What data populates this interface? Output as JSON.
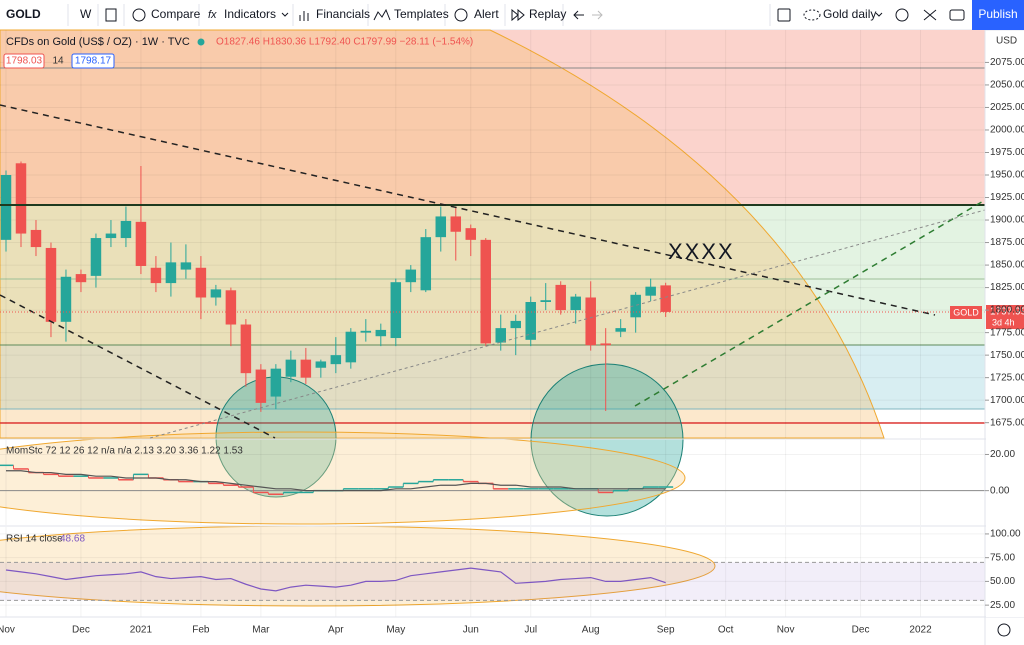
{
  "toolbar": {
    "symbol": "GOLD",
    "interval": "W",
    "buttons": [
      "Compare",
      "Indicators",
      "Financials",
      "Templates",
      "Alert",
      "Replay"
    ],
    "layout": "Gold daily",
    "publish": "Publish"
  },
  "legend": {
    "title": "CFDs on Gold (US$ / OZ) · 1W · TVC",
    "ohlc": "O1827.46 H1830.36 L1792.40 C1797.99 −28.11 (−1.54%)",
    "bid": "1798.03",
    "spread": "14",
    "ask": "1798.17"
  },
  "currency": "USD",
  "price_tag": {
    "symbol": "GOLD",
    "price": "1797.99",
    "countdown": "3d 4h"
  },
  "chart_data": [
    {
      "type": "candlestick",
      "annotation": "XXXX",
      "up_color": "#26a69a",
      "down_color": "#ef5350",
      "grid": true,
      "x": [
        0,
        1,
        2,
        3,
        4,
        5,
        6,
        7,
        8,
        9,
        10,
        11,
        12,
        13,
        14,
        15,
        16,
        17,
        18,
        19,
        20,
        21,
        22,
        23,
        24,
        25,
        26,
        27,
        28,
        29,
        30,
        31,
        32,
        33,
        34,
        35,
        36,
        37,
        38,
        39,
        40,
        41,
        42,
        43,
        44
      ],
      "open": [
        1878,
        1963,
        1889,
        1869,
        1787,
        1840,
        1838,
        1880,
        1880,
        1898,
        1847,
        1830,
        1845,
        1847,
        1814,
        1822,
        1784,
        1734,
        1704,
        1726,
        1745,
        1736,
        1740,
        1742,
        1775,
        1771,
        1769,
        1831,
        1822,
        1881,
        1904,
        1891,
        1878,
        1764,
        1780,
        1767,
        1809,
        1828,
        1800,
        1814,
        1763,
        1776,
        1792,
        1816,
        1827.46
      ],
      "high": [
        1955,
        1965,
        1900,
        1875,
        1845,
        1845,
        1885,
        1900,
        1915,
        1960,
        1860,
        1875,
        1873,
        1860,
        1828,
        1825,
        1790,
        1740,
        1740,
        1755,
        1758,
        1745,
        1770,
        1780,
        1790,
        1785,
        1835,
        1850,
        1890,
        1915,
        1915,
        1895,
        1880,
        1795,
        1795,
        1815,
        1830,
        1832,
        1818,
        1832,
        1780,
        1790,
        1820,
        1835,
        1830.36
      ],
      "low": [
        1865,
        1870,
        1860,
        1770,
        1765,
        1820,
        1825,
        1870,
        1870,
        1840,
        1820,
        1815,
        1835,
        1790,
        1805,
        1760,
        1715,
        1687,
        1690,
        1720,
        1718,
        1725,
        1730,
        1735,
        1765,
        1760,
        1760,
        1820,
        1820,
        1865,
        1855,
        1860,
        1760,
        1755,
        1750,
        1760,
        1800,
        1795,
        1785,
        1755,
        1688,
        1770,
        1775,
        1810,
        1792.4
      ],
      "close": [
        1950,
        1885,
        1870,
        1787,
        1837,
        1831,
        1880,
        1885,
        1899,
        1849,
        1830,
        1853,
        1853,
        1814,
        1823,
        1784,
        1730,
        1697,
        1735,
        1745,
        1725,
        1743,
        1750,
        1776,
        1777,
        1778,
        1831,
        1845,
        1881,
        1904,
        1887,
        1878,
        1763,
        1780,
        1788,
        1809,
        1811,
        1800,
        1815,
        1761,
        1761,
        1780,
        1817,
        1826,
        1797.99
      ],
      "xlim": [
        -0.4,
        65.3
      ],
      "xticks": [
        {
          "value": 0,
          "label": "Nov"
        },
        {
          "value": 5,
          "label": "Dec"
        },
        {
          "value": 9,
          "label": "2021"
        },
        {
          "value": 13,
          "label": "Feb"
        },
        {
          "value": 17,
          "label": "Mar"
        },
        {
          "value": 22,
          "label": "Apr"
        },
        {
          "value": 26,
          "label": "May"
        },
        {
          "value": 31,
          "label": "Jun"
        },
        {
          "value": 35,
          "label": "Jul"
        },
        {
          "value": 39,
          "label": "Aug"
        },
        {
          "value": 44,
          "label": "Sep"
        },
        {
          "value": 48,
          "label": "Oct"
        },
        {
          "value": 52,
          "label": "Nov"
        },
        {
          "value": 57,
          "label": "Dec"
        },
        {
          "value": 61,
          "label": "2022"
        }
      ],
      "ylim": [
        1658,
        2111
      ],
      "yticks": [
        {
          "value": 2075,
          "label": "2075.00"
        },
        {
          "value": 2050,
          "label": "2050.00"
        },
        {
          "value": 2025,
          "label": "2025.00"
        },
        {
          "value": 2000,
          "label": "2000.00"
        },
        {
          "value": 1975,
          "label": "1975.00"
        },
        {
          "value": 1950,
          "label": "1950.00"
        },
        {
          "value": 1925,
          "label": "1925.00"
        },
        {
          "value": 1900,
          "label": "1900.00"
        },
        {
          "value": 1875,
          "label": "1875.00"
        },
        {
          "value": 1850,
          "label": "1850.00"
        },
        {
          "value": 1825,
          "label": "1825.00"
        },
        {
          "value": 1800,
          "label": "1800.00"
        },
        {
          "value": 1775,
          "label": "1775.00"
        },
        {
          "value": 1750,
          "label": "1750.00"
        },
        {
          "value": 1725,
          "label": "1725.00"
        },
        {
          "value": 1700,
          "label": "1700.00"
        },
        {
          "value": 1675,
          "label": "1675.00"
        }
      ]
    },
    {
      "type": "line",
      "title": "MomStc 72 12 26 12 n/a n/a 2.13 3.20 3.36 1.22 1.53",
      "grid": true,
      "series": [
        {
          "step": true,
          "up_color": "#26a69a",
          "down_color": "#ef5350",
          "values": [
            14,
            12,
            10,
            9,
            8,
            8,
            7,
            7,
            6,
            9,
            7,
            6,
            5,
            5,
            4,
            3,
            2,
            -1,
            -2,
            -1,
            -1,
            0,
            0,
            1,
            1,
            1,
            2,
            4,
            5,
            6,
            6,
            5,
            4,
            1,
            1,
            1,
            1,
            1,
            1,
            1,
            -1,
            0,
            1,
            2,
            2
          ]
        },
        {
          "color": "#555555",
          "values": [
            11,
            11,
            10,
            10,
            9,
            9,
            8,
            8,
            7,
            7,
            7,
            6,
            6,
            5,
            5,
            4,
            3,
            2,
            1,
            1,
            0,
            0,
            0,
            0,
            0,
            0,
            1,
            1,
            2,
            3,
            3,
            4,
            4,
            3,
            3,
            2,
            2,
            2,
            1,
            1,
            1,
            1,
            1,
            1,
            1
          ]
        }
      ],
      "ylim": [
        -19,
        28
      ],
      "yticks": [
        {
          "value": 20,
          "label": "20.00"
        },
        {
          "value": 0,
          "label": "0.00"
        }
      ]
    },
    {
      "type": "line",
      "title": "RSI 14 close",
      "last_label": "48.68",
      "grid": true,
      "band": [
        30,
        70
      ],
      "band_color": "#7e57c2",
      "series": [
        {
          "color": "#7e57c2",
          "values": [
            62,
            60,
            58,
            55,
            52,
            54,
            56,
            57,
            58,
            60,
            55,
            53,
            54,
            55,
            52,
            53,
            47,
            42,
            40,
            44,
            46,
            45,
            44,
            46,
            50,
            50,
            51,
            56,
            58,
            60,
            62,
            64,
            62,
            60,
            48,
            49,
            50,
            52,
            53,
            54,
            50,
            50,
            52,
            54,
            48.68
          ]
        }
      ],
      "ylim": [
        12.5,
        107.3
      ],
      "yticks": [
        {
          "value": 100,
          "label": "100.00"
        },
        {
          "value": 75,
          "label": "75.00"
        },
        {
          "value": 50,
          "label": "50.00"
        },
        {
          "value": 25,
          "label": "25.00"
        }
      ]
    }
  ]
}
